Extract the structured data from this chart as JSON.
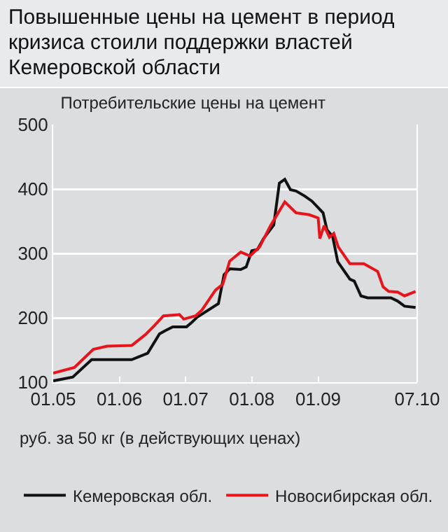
{
  "chart_data": {
    "type": "line",
    "title": "Повышенные цены на цемент в период кризиса стоили поддержки властей Кемеровской области",
    "subtitle": "Потребительские цены на цемент",
    "xlabel": "руб. за 50 кг (в действующих ценах)",
    "xlim": [
      "2005-01",
      "2010-07"
    ],
    "xticks": [
      {
        "value": "2005-01",
        "label": "01.05"
      },
      {
        "value": "2006-01",
        "label": "01.06"
      },
      {
        "value": "2007-01",
        "label": "01.07"
      },
      {
        "value": "2008-01",
        "label": "01.08"
      },
      {
        "value": "2009-01",
        "label": "01.09"
      },
      {
        "value": "2010-07",
        "label": "07.10"
      }
    ],
    "ylim": [
      100,
      500
    ],
    "yticks": [
      100,
      200,
      300,
      400,
      500
    ],
    "grid": "y",
    "legend": "bottom",
    "line_style": "solid",
    "marker": "none",
    "series": [
      {
        "name": "Кемеровская обл.",
        "color": "#111111",
        "x": [
          "2005-01-01",
          "2005-04-19",
          "2005-08-01",
          "2006-03-10",
          "2006-06-06",
          "2006-08-10",
          "2006-09-10",
          "2006-10-22",
          "2007-01-06",
          "2007-02-01",
          "2007-03-06",
          "2007-07-01",
          "2007-08-01",
          "2007-09-01",
          "2007-11-01",
          "2007-12-01",
          "2008-01-01",
          "2008-02-01",
          "2008-03-06",
          "2008-05-01",
          "2008-06-01",
          "2008-07-01",
          "2008-08-01",
          "2008-09-01",
          "2008-10-19",
          "2008-11-28",
          "2009-01-28",
          "2009-02-18",
          "2009-03-22",
          "2009-04-19",
          "2009-06-25",
          "2009-07-19",
          "2009-08-25",
          "2009-10-01",
          "2010-02-06",
          "2010-03-15",
          "2010-04-22",
          "2010-06-22"
        ],
        "values": [
          102,
          108,
          135,
          135,
          145,
          175,
          180,
          186,
          186,
          192,
          201,
          222,
          267,
          276,
          275,
          279,
          304,
          306,
          323,
          344,
          409,
          415,
          399,
          397,
          389,
          381,
          363,
          337,
          326,
          287,
          260,
          257,
          234,
          231,
          231,
          226,
          218,
          216
        ]
      },
      {
        "name": "Новосибирская обл.",
        "color": "#e8141b",
        "x": [
          "2005-01-01",
          "2005-04-28",
          "2005-08-10",
          "2005-10-25",
          "2006-03-10",
          "2006-05-25",
          "2006-07-13",
          "2006-09-01",
          "2006-11-28",
          "2006-12-22",
          "2007-02-25",
          "2007-04-01",
          "2007-06-15",
          "2007-07-25",
          "2007-09-01",
          "2007-11-01",
          "2007-12-22",
          "2008-02-13",
          "2008-04-13",
          "2008-07-01",
          "2008-09-01",
          "2008-11-13",
          "2009-01-01",
          "2009-01-10",
          "2009-02-03",
          "2009-03-04",
          "2009-03-28",
          "2009-04-22",
          "2009-06-25",
          "2009-09-10",
          "2009-11-25",
          "2009-12-25",
          "2010-01-25",
          "2010-03-15",
          "2010-04-22",
          "2010-06-22"
        ],
        "values": [
          114,
          123,
          151,
          156,
          157,
          174,
          188,
          203,
          205,
          198,
          203,
          212,
          243,
          252,
          288,
          302,
          296,
          310,
          343,
          380,
          363,
          360,
          355,
          323,
          343,
          325,
          331,
          310,
          284,
          284,
          272,
          248,
          241,
          240,
          234,
          241
        ]
      }
    ]
  }
}
